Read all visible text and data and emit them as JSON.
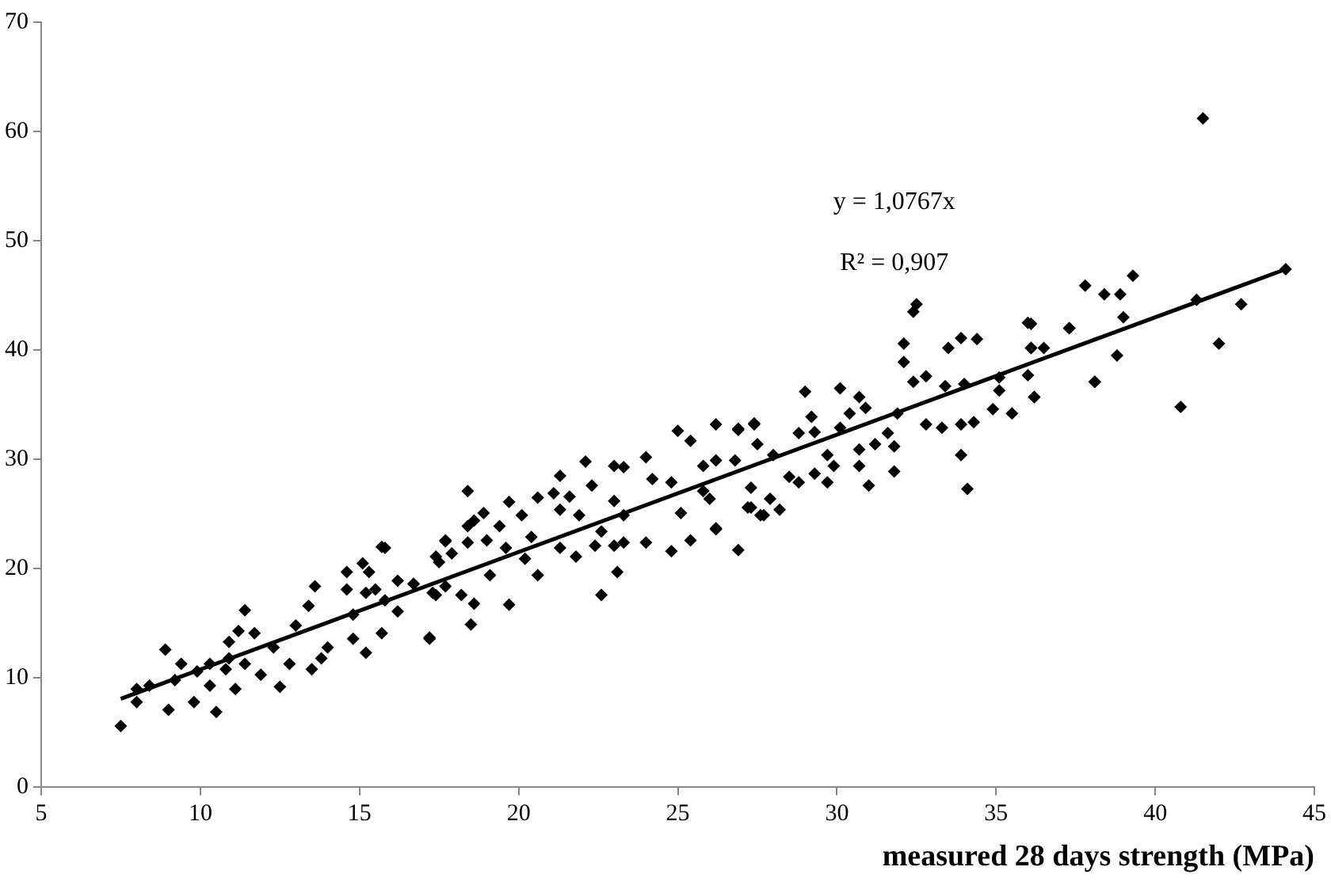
{
  "chart_data": {
    "type": "scatter",
    "xlabel": "measured 28 days strength (MPa)",
    "xlim": [
      5,
      45
    ],
    "xticks": [
      5,
      10,
      15,
      20,
      25,
      30,
      35,
      40,
      45
    ],
    "ylim": [
      0,
      70
    ],
    "yticks": [
      0,
      10,
      20,
      30,
      40,
      50,
      60,
      70
    ],
    "grid": false,
    "legend": false,
    "marker": "diamond",
    "annotations": [
      "y = 1,0767x",
      "R² = 0,907"
    ],
    "series": [
      {
        "color": "#000000",
        "x": [
          41.5,
          41.3,
          42.7,
          42.0,
          40.8,
          39.3,
          38.9,
          38.4,
          37.8,
          39.0,
          38.8,
          38.1,
          37.3,
          36.1,
          36.1,
          36.5,
          36.0,
          36.2,
          32.5,
          32.4,
          32.1,
          32.1,
          32.4,
          32.8,
          33.5,
          33.9,
          34.4,
          33.4,
          34.0,
          35.1,
          36.0,
          36.1,
          37.3,
          38.1,
          35.1,
          34.9,
          35.5,
          36.2,
          33.9,
          34.1,
          32.8,
          33.3,
          33.9,
          34.3,
          31.9,
          31.6,
          31.8,
          31.8,
          31.0,
          31.2,
          30.7,
          30.9,
          30.1,
          29.0,
          29.2,
          30.4,
          28.8,
          29.3,
          30.1,
          30.7,
          30.7,
          29.9,
          29.7,
          29.3,
          28.8,
          28.5,
          28.0,
          27.4,
          26.9,
          26.2,
          27.5,
          26.8,
          26.2,
          27.3,
          27.3,
          27.7,
          28.2,
          27.9,
          26.2,
          25.8,
          25.8,
          29.7,
          26.9,
          27.4,
          25.0,
          25.4,
          24.0,
          23.0,
          23.3,
          22.1,
          21.3,
          21.1,
          20.6,
          22.3,
          23.0,
          21.6,
          21.3,
          21.9,
          19.7,
          20.1,
          19.4,
          18.9,
          18.4,
          18.6,
          18.4,
          17.7,
          19.0,
          20.4,
          21.3,
          21.8,
          22.4,
          23.0,
          23.3,
          22.6,
          24.0,
          23.3,
          24.8,
          24.2,
          25.1,
          25.4,
          24.8,
          26.2,
          26.0,
          26.9,
          27.2,
          27.6,
          23.1,
          22.6,
          19.7,
          18.5,
          17.2,
          18.6,
          18.2,
          17.7,
          17.3,
          17.5,
          17.9,
          19.1,
          19.6,
          20.2,
          20.6,
          18.4,
          15.7,
          16.2,
          16.7,
          15.8,
          7.5,
          8.0,
          8.0,
          9.0,
          8.4,
          8.9,
          9.4,
          9.8,
          9.2,
          9.9,
          10.5,
          10.3,
          10.8,
          10.9,
          11.2,
          11.4,
          11.1,
          11.9,
          11.7,
          12.3,
          12.5,
          12.8,
          13.0,
          13.5,
          13.6,
          13.4,
          14.0,
          13.8,
          14.6,
          14.6,
          15.1,
          15.3,
          15.2,
          14.8,
          15.2,
          14.8,
          15.8,
          15.5,
          16.2,
          15.7,
          16.7,
          17.2,
          17.7,
          17.4,
          17.4,
          10.3,
          11.4,
          10.9,
          44.1
        ],
        "values": [
          61.2,
          44.6,
          44.2,
          40.6,
          34.8,
          46.8,
          45.1,
          45.1,
          45.9,
          43.0,
          39.5,
          37.1,
          42.0,
          42.4,
          40.2,
          40.2,
          37.7,
          35.7,
          44.2,
          43.5,
          40.6,
          38.9,
          37.1,
          37.6,
          40.2,
          41.1,
          41.0,
          36.7,
          36.9,
          37.5,
          42.5,
          40.2,
          42.0,
          37.1,
          36.3,
          34.6,
          34.2,
          35.7,
          30.4,
          27.3,
          33.2,
          32.9,
          33.2,
          33.4,
          34.2,
          32.4,
          31.2,
          28.9,
          27.6,
          31.4,
          35.7,
          34.7,
          36.5,
          36.2,
          33.9,
          34.2,
          32.4,
          32.5,
          32.9,
          30.9,
          29.4,
          29.4,
          27.9,
          28.7,
          27.9,
          28.4,
          30.4,
          33.2,
          32.7,
          33.2,
          31.4,
          29.9,
          29.9,
          27.4,
          25.6,
          24.9,
          25.4,
          26.4,
          23.6,
          27.1,
          29.4,
          30.4,
          32.8,
          33.3,
          32.6,
          31.7,
          30.2,
          29.4,
          29.3,
          29.8,
          28.5,
          26.9,
          26.5,
          27.6,
          26.2,
          26.6,
          25.4,
          24.9,
          26.1,
          24.9,
          23.9,
          25.1,
          27.1,
          24.4,
          22.4,
          22.5,
          22.6,
          22.9,
          21.9,
          21.1,
          22.1,
          22.1,
          22.4,
          23.4,
          22.4,
          24.9,
          27.9,
          28.2,
          25.1,
          22.6,
          21.6,
          23.7,
          26.4,
          21.7,
          25.6,
          24.9,
          19.7,
          17.6,
          16.7,
          14.9,
          13.7,
          16.8,
          17.6,
          18.4,
          17.8,
          20.6,
          21.4,
          19.4,
          21.9,
          20.9,
          19.4,
          23.9,
          22.0,
          18.9,
          18.6,
          17.1,
          5.6,
          9.0,
          7.8,
          7.1,
          9.3,
          12.6,
          11.3,
          7.8,
          9.8,
          10.6,
          6.9,
          9.3,
          10.8,
          13.3,
          14.3,
          16.2,
          9.0,
          10.3,
          14.1,
          12.8,
          9.2,
          11.3,
          14.8,
          10.8,
          18.4,
          16.6,
          12.8,
          11.8,
          19.7,
          18.1,
          20.5,
          19.7,
          17.8,
          15.8,
          12.3,
          13.6,
          21.9,
          18.1,
          16.1,
          14.1,
          18.6,
          13.6,
          22.6,
          21.1,
          17.6,
          11.3,
          11.3,
          11.8,
          47.4
        ]
      },
      {
        "type": "line",
        "color": "#000000",
        "marker": "none",
        "x": [
          7.5,
          44.1
        ],
        "values": [
          8.1,
          47.4
        ]
      }
    ]
  }
}
